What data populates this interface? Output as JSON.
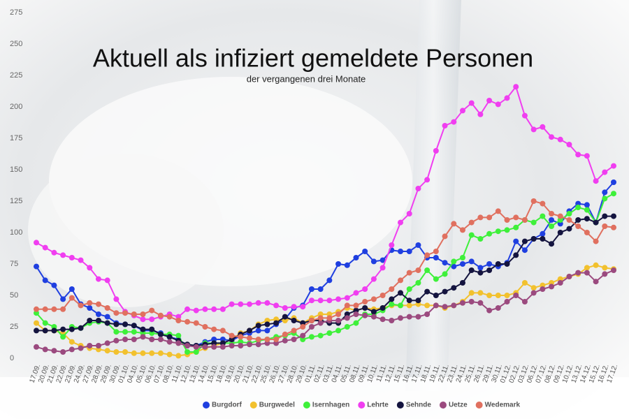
{
  "chart_data": {
    "type": "line",
    "title": "Aktuell als infiziert gemeldete Personen",
    "subtitle": "der vergangenen drei Monate",
    "categories": [
      "17.09.",
      "20.09.",
      "21.09.",
      "22.09.",
      "23.09.",
      "24.09.",
      "27.09.",
      "28.09.",
      "29.09.",
      "30.09.",
      "01.10.",
      "04.10.",
      "05.10.",
      "06.10.",
      "07.10.",
      "08.10.",
      "11.10.",
      "12.10.",
      "13.10.",
      "14.10.",
      "15.10.",
      "18.10.",
      "19.10.",
      "20.10.",
      "21.10.",
      "22.10.",
      "25.10.",
      "26.10.",
      "27.10.",
      "28.10.",
      "29.10.",
      "01.11.",
      "02.11.",
      "03.11.",
      "04.11.",
      "05.11.",
      "08.11.",
      "09.11.",
      "10.11.",
      "11.11.",
      "12.11.",
      "15.11.",
      "16.11.",
      "17.11.",
      "18.11.",
      "19.11.",
      "22.11.",
      "23.11.",
      "24.11.",
      "25.11.",
      "26.11.",
      "29.11.",
      "30.11.",
      "01.12.",
      "02.12.",
      "03.12.",
      "06.12.",
      "07.12.",
      "08.12.",
      "09.12.",
      "10.12.",
      "13.12.",
      "14.12.",
      "15.12.",
      "16.12.",
      "17.12."
    ],
    "series": [
      {
        "name": "Burgdorf",
        "color": "#1f3fe0",
        "values": [
          73,
          62,
          58,
          47,
          55,
          43,
          40,
          35,
          33,
          28,
          27,
          26,
          22,
          22,
          20,
          17,
          15,
          10,
          10,
          13,
          15,
          15,
          14,
          18,
          20,
          22,
          22,
          27,
          31,
          40,
          42,
          55,
          55,
          62,
          75,
          74,
          80,
          85,
          77,
          78,
          86,
          85,
          85,
          90,
          80,
          80,
          76,
          73,
          75,
          77,
          72,
          75,
          73,
          76,
          93,
          86,
          95,
          99,
          110,
          107,
          117,
          123,
          122,
          108,
          132,
          140
        ]
      },
      {
        "name": "Burgwedel",
        "color": "#f2c12e",
        "values": [
          28,
          22,
          22,
          20,
          13,
          10,
          8,
          7,
          6,
          5,
          5,
          4,
          4,
          4,
          4,
          3,
          2,
          3,
          5,
          8,
          10,
          12,
          15,
          20,
          22,
          27,
          30,
          31,
          30,
          32,
          28,
          32,
          35,
          35,
          37,
          40,
          38,
          40,
          39,
          40,
          42,
          42,
          42,
          43,
          42,
          42,
          40,
          42,
          45,
          52,
          52,
          50,
          50,
          50,
          52,
          60,
          56,
          58,
          60,
          63,
          65,
          67,
          72,
          74,
          72,
          71
        ]
      },
      {
        "name": "Isernhagen",
        "color": "#3ef03a",
        "values": [
          36,
          28,
          25,
          17,
          25,
          24,
          28,
          29,
          28,
          21,
          21,
          21,
          20,
          20,
          19,
          19,
          18,
          5,
          5,
          12,
          12,
          12,
          12,
          13,
          12,
          14,
          15,
          17,
          18,
          20,
          15,
          17,
          18,
          20,
          22,
          25,
          28,
          35,
          35,
          38,
          43,
          42,
          55,
          60,
          70,
          63,
          67,
          77,
          80,
          98,
          95,
          99,
          101,
          102,
          104,
          110,
          108,
          113,
          105,
          110,
          115,
          120,
          118,
          108,
          127,
          131
        ]
      },
      {
        "name": "Lehrte",
        "color": "#f03ef0",
        "values": [
          92,
          88,
          84,
          82,
          80,
          78,
          72,
          63,
          62,
          47,
          37,
          34,
          31,
          31,
          33,
          35,
          33,
          39,
          38,
          39,
          39,
          39,
          43,
          43,
          43,
          44,
          44,
          42,
          40,
          41,
          41,
          46,
          46,
          46,
          47,
          48,
          52,
          55,
          63,
          72,
          90,
          108,
          115,
          135,
          142,
          165,
          185,
          188,
          197,
          203,
          194,
          205,
          202,
          207,
          216,
          193,
          182,
          184,
          176,
          174,
          170,
          162,
          161,
          141,
          148,
          153
        ]
      },
      {
        "name": "Sehnde",
        "color": "#14143f",
        "values": [
          22,
          22,
          22,
          23,
          23,
          24,
          30,
          30,
          28,
          27,
          27,
          26,
          23,
          23,
          19,
          17,
          14,
          11,
          10,
          11,
          12,
          12,
          15,
          19,
          22,
          26,
          27,
          28,
          33,
          30,
          28,
          30,
          30,
          28,
          28,
          35,
          38,
          40,
          37,
          40,
          47,
          52,
          46,
          46,
          53,
          50,
          53,
          56,
          60,
          70,
          68,
          70,
          75,
          75,
          82,
          93,
          95,
          95,
          91,
          100,
          103,
          110,
          111,
          108,
          113,
          113
        ]
      },
      {
        "name": "Uetze",
        "color": "#9b4a7f",
        "values": [
          9,
          7,
          6,
          5,
          7,
          8,
          10,
          10,
          12,
          14,
          15,
          15,
          17,
          15,
          15,
          13,
          12,
          10,
          9,
          9,
          9,
          9,
          10,
          10,
          11,
          11,
          12,
          12,
          14,
          15,
          18,
          25,
          28,
          30,
          30,
          32,
          35,
          34,
          33,
          31,
          30,
          32,
          33,
          33,
          35,
          42,
          41,
          42,
          44,
          45,
          44,
          38,
          40,
          45,
          50,
          45,
          52,
          55,
          57,
          60,
          65,
          68,
          68,
          61,
          67,
          70
        ]
      },
      {
        "name": "Wedemark",
        "color": "#e0705f",
        "values": [
          39,
          39,
          39,
          39,
          48,
          42,
          44,
          43,
          40,
          36,
          36,
          35,
          35,
          38,
          34,
          33,
          30,
          29,
          28,
          25,
          23,
          22,
          18,
          17,
          16,
          15,
          15,
          15,
          19,
          22,
          25,
          30,
          32,
          32,
          35,
          42,
          42,
          45,
          47,
          50,
          55,
          62,
          68,
          70,
          82,
          85,
          97,
          107,
          102,
          108,
          112,
          112,
          117,
          110,
          112,
          110,
          125,
          123,
          115,
          113,
          110,
          105,
          100,
          93,
          105,
          104
        ]
      }
    ],
    "ylim": [
      0,
      275
    ],
    "yticks": [
      0,
      25,
      50,
      75,
      100,
      125,
      150,
      175,
      200,
      225,
      250,
      275
    ],
    "grid": false,
    "legend": "bottom"
  }
}
